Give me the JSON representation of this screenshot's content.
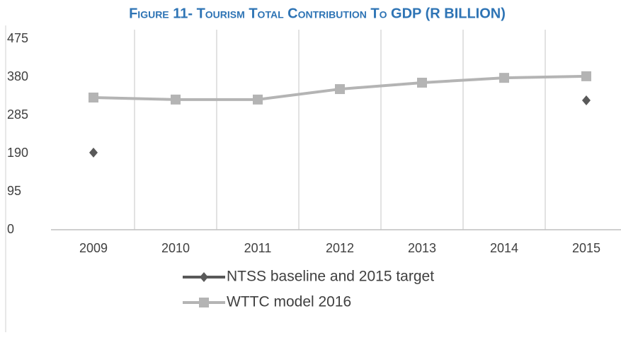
{
  "chart_data": {
    "type": "line",
    "title": "Figure 11- Tourism Total Contribution To GDP (R BILLION)",
    "categories": [
      "2009",
      "2010",
      "2011",
      "2012",
      "2013",
      "2014",
      "2015"
    ],
    "series": [
      {
        "name": "NTSS baseline and 2015 target",
        "color": "#595959",
        "marker": "diamond",
        "values": [
          192,
          null,
          null,
          null,
          null,
          null,
          322
        ]
      },
      {
        "name": "WTTC model 2016",
        "color": "#b4b4b4",
        "marker": "square",
        "values": [
          329,
          324,
          324,
          350,
          366,
          378,
          382
        ]
      }
    ],
    "ylim": [
      0,
      475
    ],
    "yticks": [
      0,
      95,
      190,
      285,
      380,
      475
    ]
  }
}
